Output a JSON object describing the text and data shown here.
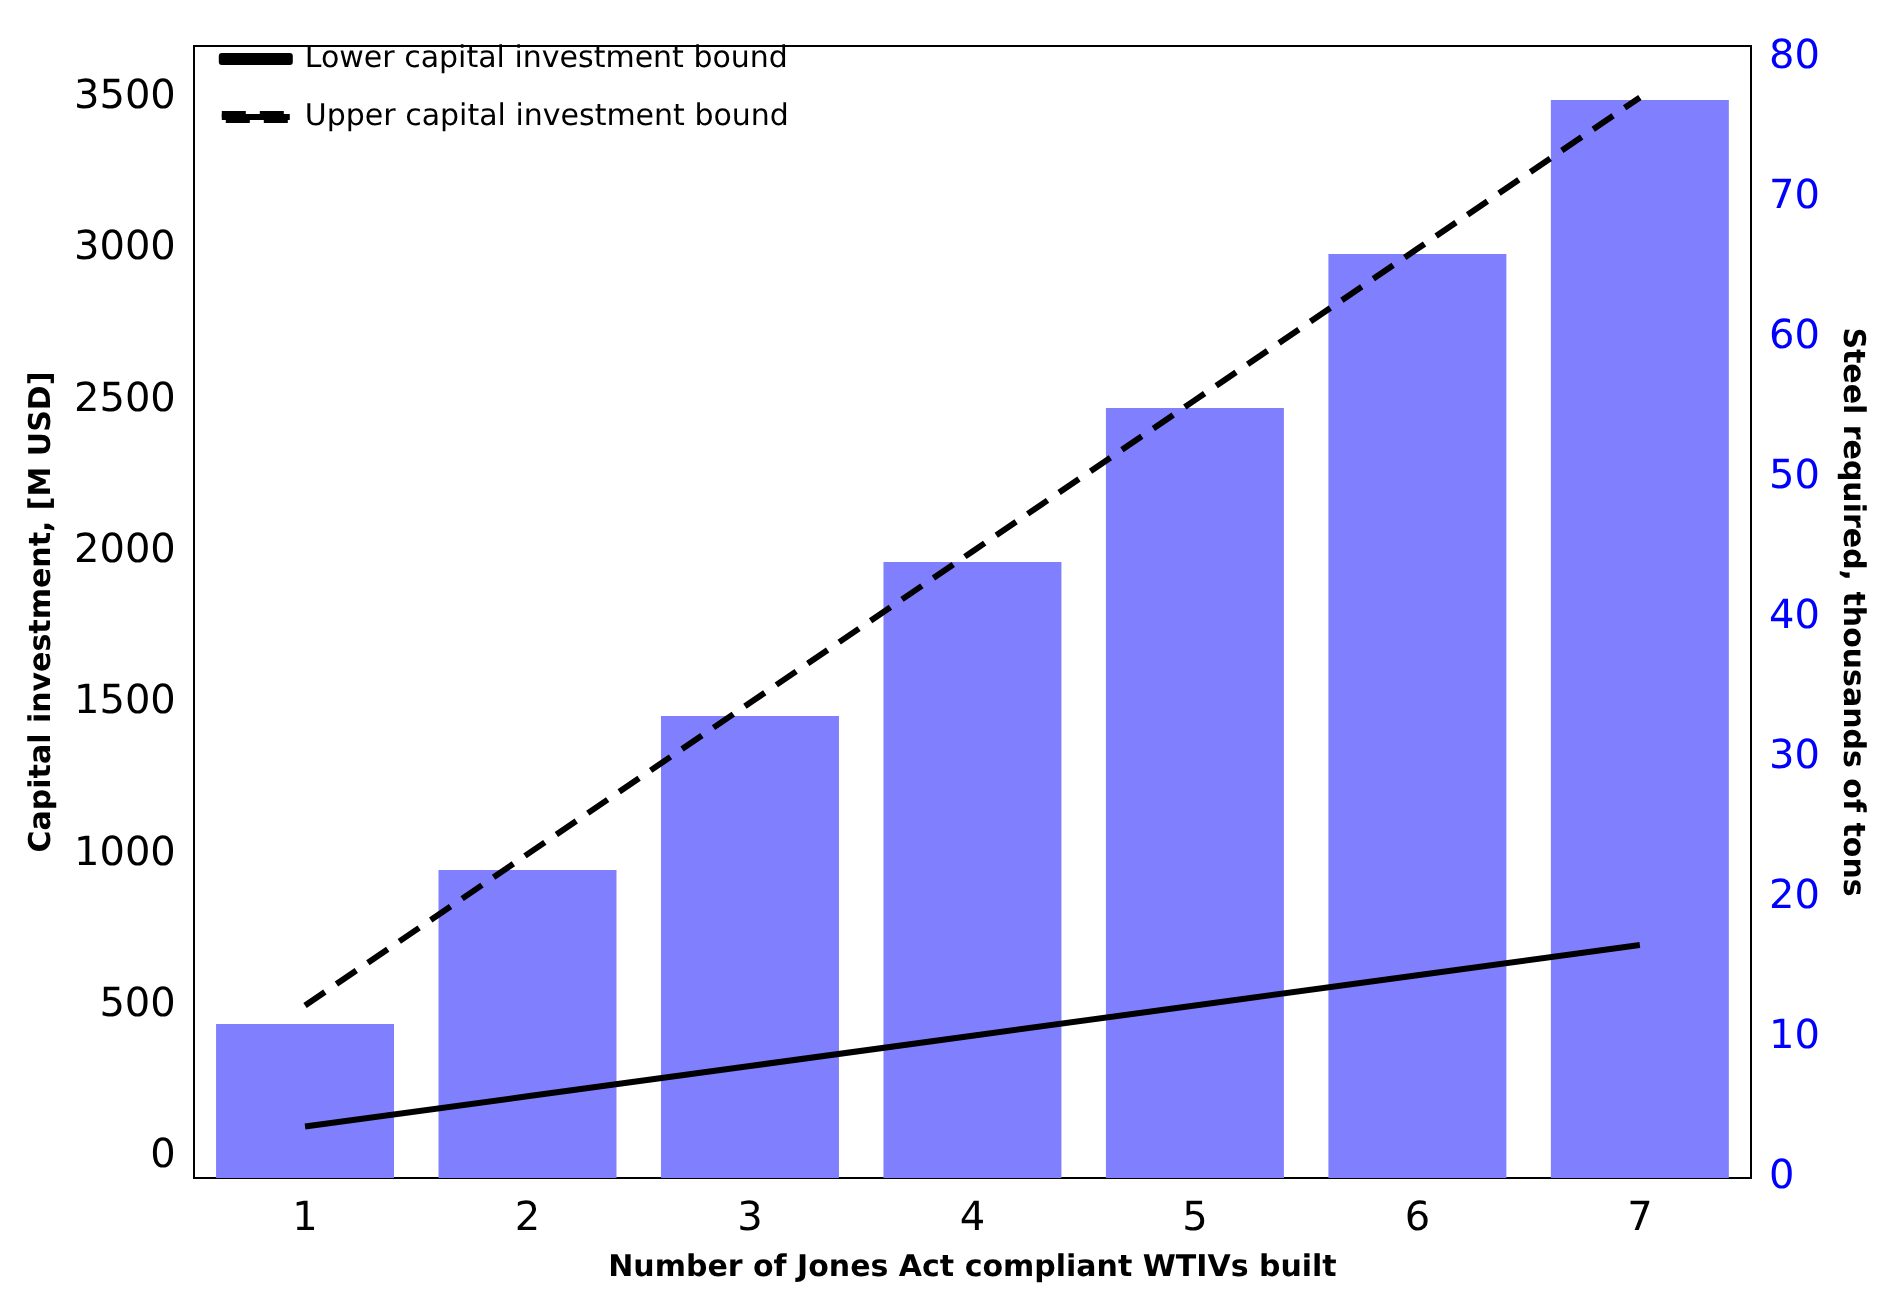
{
  "chart_data": {
    "type": "bar",
    "xlabel": "Number of Jones Act compliant WTIVs built",
    "ylabel": "Capital investment, [M USD]",
    "y2label": "Steel required, thousands of tons",
    "categories": [
      "1",
      "2",
      "3",
      "4",
      "5",
      "6",
      "7"
    ],
    "series": [
      {
        "axis": "y2",
        "color": "#8080ff",
        "values": [
          11,
          22,
          33,
          44,
          55,
          66,
          77
        ]
      },
      {
        "type": "line",
        "name": "Lower capital investment bound",
        "color": "#000000",
        "line_style": "solid",
        "values": [
          100,
          200,
          300,
          400,
          500,
          600,
          700
        ]
      },
      {
        "type": "line",
        "name": "Upper capital investment bound",
        "color": "#000000",
        "line_style": "dashed",
        "values": [
          500,
          1000,
          1500,
          2000,
          2500,
          3000,
          3500
        ]
      }
    ],
    "ylim": [
      -70,
      3670
    ],
    "yticks": [
      0,
      500,
      1000,
      1500,
      2000,
      2500,
      3000,
      3500
    ],
    "y2lim": [
      0,
      80.85
    ],
    "y2ticks": [
      0,
      10,
      20,
      30,
      40,
      50,
      60,
      70,
      80
    ],
    "legend": "top left",
    "grid": false,
    "marker": "none"
  }
}
